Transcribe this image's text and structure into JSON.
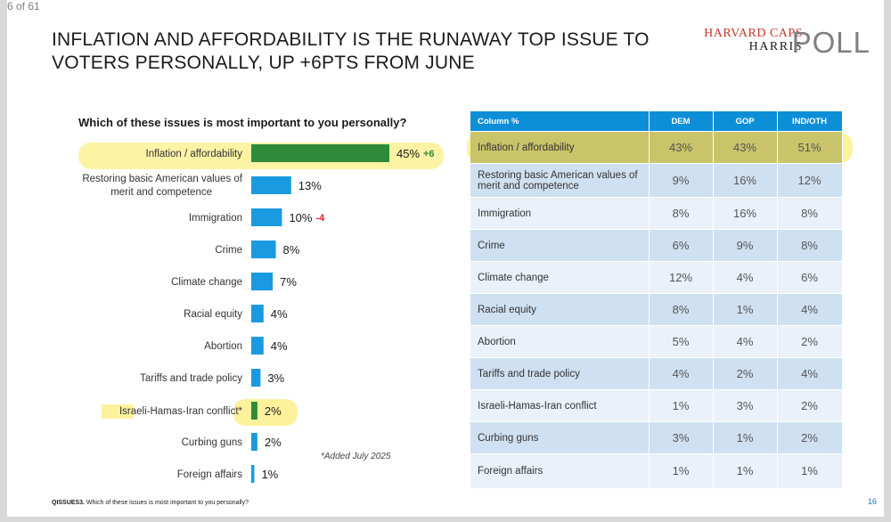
{
  "page_counter": "6 of 61",
  "title": "INFLATION AND AFFORDABILITY IS THE RUNAWAY TOP ISSUE TO VOTERS PERSONALLY, UP +6PTS FROM JUNE",
  "logo": {
    "line1": "HARVARD CAPS",
    "line2": "HARRIS",
    "line3": "POLL"
  },
  "chart_data": {
    "type": "bar",
    "orientation": "horizontal",
    "title": "Which of these issues is most important to you personally?",
    "categories": [
      "Inflation / affordability",
      "Restoring basic American values of merit and competence",
      "Immigration",
      "Crime",
      "Climate change",
      "Racial equity",
      "Abortion",
      "Tariffs and trade policy",
      "Israeli-Hamas-Iran conflict*",
      "Curbing guns",
      "Foreign affairs"
    ],
    "values": [
      45,
      13,
      10,
      8,
      7,
      4,
      4,
      3,
      2,
      2,
      1
    ],
    "value_labels": [
      "45%",
      "13%",
      "10%",
      "8%",
      "7%",
      "4%",
      "4%",
      "3%",
      "2%",
      "2%",
      "1%"
    ],
    "changes": [
      "+6",
      "",
      "-4",
      "",
      "",
      "",
      "",
      "",
      "",
      "",
      ""
    ],
    "bar_colors": [
      "#2e8b3a",
      "#1a9ae0",
      "#1a9ae0",
      "#1a9ae0",
      "#1a9ae0",
      "#1a9ae0",
      "#1a9ae0",
      "#1a9ae0",
      "#2e8b3a",
      "#1a9ae0",
      "#1a9ae0"
    ],
    "positive_change_color": "#2e8b3a",
    "negative_change_color": "#d62728",
    "xlim": [
      0,
      45
    ],
    "note": "*Added July 2025"
  },
  "table": {
    "headers": [
      "Column %",
      "DEM",
      "GOP",
      "IND/OTH"
    ],
    "rows": [
      {
        "label": "Inflation / affordability",
        "dem": "43%",
        "gop": "43%",
        "ind": "51%"
      },
      {
        "label": "Restoring basic American values of merit and competence",
        "dem": "9%",
        "gop": "16%",
        "ind": "12%"
      },
      {
        "label": "Immigration",
        "dem": "8%",
        "gop": "16%",
        "ind": "8%"
      },
      {
        "label": "Crime",
        "dem": "6%",
        "gop": "9%",
        "ind": "8%"
      },
      {
        "label": "Climate change",
        "dem": "12%",
        "gop": "4%",
        "ind": "6%"
      },
      {
        "label": "Racial equity",
        "dem": "8%",
        "gop": "1%",
        "ind": "4%"
      },
      {
        "label": "Abortion",
        "dem": "5%",
        "gop": "4%",
        "ind": "2%"
      },
      {
        "label": "Tariffs and trade policy",
        "dem": "4%",
        "gop": "2%",
        "ind": "4%"
      },
      {
        "label": "Israeli-Hamas-Iran conflict",
        "dem": "1%",
        "gop": "3%",
        "ind": "2%"
      },
      {
        "label": "Curbing guns",
        "dem": "3%",
        "gop": "1%",
        "ind": "2%"
      },
      {
        "label": "Foreign affairs",
        "dem": "1%",
        "gop": "1%",
        "ind": "1%"
      }
    ]
  },
  "footnote": {
    "code": "QISSUES3.",
    "text": "Which of these issues is most important to you personally?"
  },
  "slide_number": "16",
  "colors": {
    "header_blue": "#0d8fd8",
    "highlight": "#fdf29b",
    "row_even": "#cfe0f2",
    "row_odd": "#eaf1fa"
  }
}
